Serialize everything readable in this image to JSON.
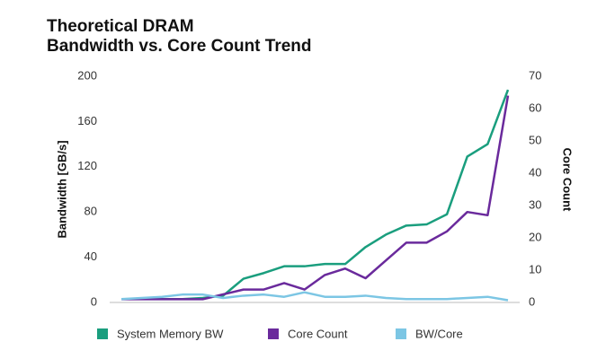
{
  "chart_data": {
    "type": "line",
    "title": "Theoretical DRAM",
    "subtitle": "Bandwidth vs. Core Count Trend",
    "y_label": "Bandwidth [GB/s]",
    "y2_label": "Core Count",
    "categories": [
      null,
      null,
      null,
      null,
      null,
      null,
      null,
      null,
      null,
      null,
      null,
      null,
      null,
      null,
      null,
      null,
      null,
      null,
      null,
      null
    ],
    "ylim": [
      0,
      200
    ],
    "yticks": [
      0,
      40,
      80,
      120,
      160,
      200
    ],
    "y2lim": [
      0,
      70
    ],
    "y2ticks": [
      0,
      10,
      20,
      30,
      40,
      50,
      60,
      70
    ],
    "legend": "bottom",
    "series": [
      {
        "name": "System Memory BW",
        "color": "#1a9e7e",
        "values": [
          3,
          3,
          3,
          3,
          4,
          6,
          21,
          26,
          32,
          32,
          34,
          34,
          49,
          60,
          68,
          69,
          78,
          129,
          140,
          188
        ]
      },
      {
        "name": "Core Count",
        "color": "#6a2a9c",
        "axis": "y2",
        "values": [
          1,
          1,
          1,
          1,
          1,
          2.5,
          4,
          4,
          6,
          4,
          8.5,
          10.5,
          7.5,
          13,
          18.5,
          18.5,
          22,
          28,
          27,
          64
        ]
      },
      {
        "name": "BW/Core",
        "color": "#7cc6e4",
        "values": [
          3,
          4,
          5,
          7,
          7,
          4,
          6,
          7,
          5,
          9,
          5,
          5,
          6,
          4,
          3,
          3,
          3,
          4,
          5,
          2
        ]
      }
    ]
  }
}
